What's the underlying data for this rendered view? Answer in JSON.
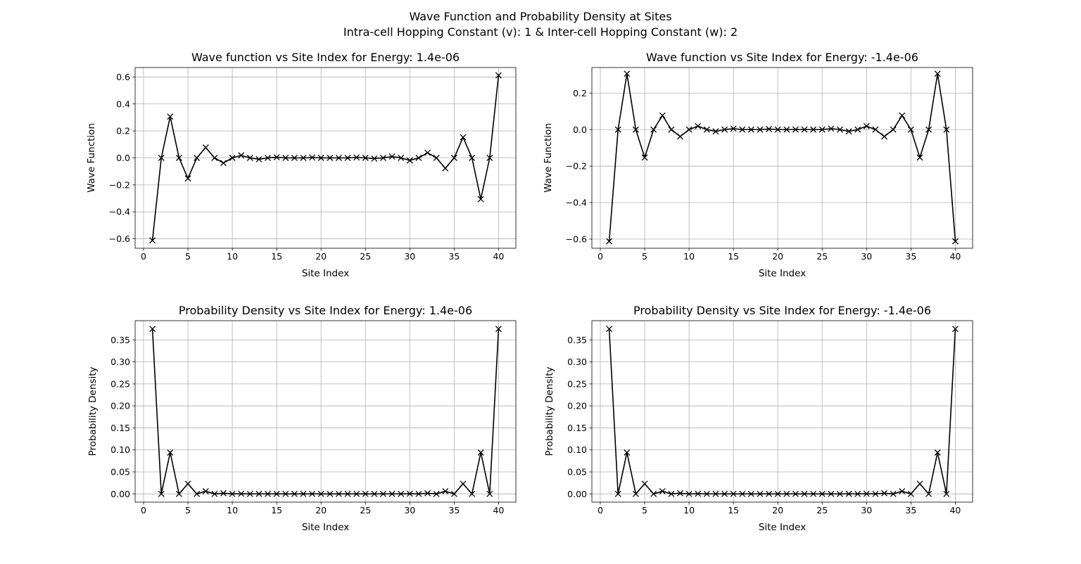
{
  "figure": {
    "suptitle_line1": "Wave Function and Probability Density at Sites",
    "suptitle_line2": "Intra-cell Hopping Constant (v): 1 & Inter-cell Hopping Constant (w): 2"
  },
  "style": {
    "line_color": "#000000",
    "grid_color": "#b0b0b0",
    "marker": "x"
  },
  "chart_data": [
    {
      "type": "line",
      "title": "Wave function vs Site Index for Energy: 1.4e-06",
      "xlabel": "Site Index",
      "ylabel": "Wave Function",
      "xlim": [
        -0.95,
        41.95
      ],
      "ylim": [
        -0.67,
        0.67
      ],
      "xticks": [
        0,
        5,
        10,
        15,
        20,
        25,
        30,
        35,
        40
      ],
      "yticks": [
        -0.6,
        -0.4,
        -0.2,
        0.0,
        0.2,
        0.4,
        0.6
      ],
      "ytick_labels": [
        "−0.6",
        "−0.4",
        "−0.2",
        "0.0",
        "0.2",
        "0.4",
        "0.6"
      ],
      "grid": true,
      "x": [
        1,
        2,
        3,
        4,
        5,
        6,
        7,
        8,
        9,
        10,
        11,
        12,
        13,
        14,
        15,
        16,
        17,
        18,
        19,
        20,
        21,
        22,
        23,
        24,
        25,
        26,
        27,
        28,
        29,
        30,
        31,
        32,
        33,
        34,
        35,
        36,
        37,
        38,
        39,
        40
      ],
      "y": [
        -0.612,
        0.0,
        0.306,
        0.0,
        -0.153,
        0.0,
        0.077,
        0.0,
        -0.038,
        0.0,
        0.019,
        0.0,
        -0.01,
        0.0,
        0.005,
        0.0,
        0.0,
        0.0,
        0.003,
        0.0,
        0.0,
        0.0,
        0.0,
        0.003,
        0.0,
        -0.005,
        0.0,
        0.01,
        0.0,
        -0.019,
        0.0,
        0.038,
        0.0,
        -0.077,
        0.0,
        0.153,
        0.0,
        -0.306,
        0.0,
        0.612
      ]
    },
    {
      "type": "line",
      "title": "Wave function vs Site Index for Energy: -1.4e-06",
      "xlabel": "Site Index",
      "ylabel": "Wave Function",
      "xlim": [
        -0.95,
        41.95
      ],
      "ylim": [
        -0.65,
        0.34
      ],
      "xticks": [
        0,
        5,
        10,
        15,
        20,
        25,
        30,
        35,
        40
      ],
      "yticks": [
        -0.6,
        -0.4,
        -0.2,
        0.0,
        0.2
      ],
      "ytick_labels": [
        "−0.6",
        "−0.4",
        "−0.2",
        "0.0",
        "0.2"
      ],
      "grid": true,
      "x": [
        1,
        2,
        3,
        4,
        5,
        6,
        7,
        8,
        9,
        10,
        11,
        12,
        13,
        14,
        15,
        16,
        17,
        18,
        19,
        20,
        21,
        22,
        23,
        24,
        25,
        26,
        27,
        28,
        29,
        30,
        31,
        32,
        33,
        34,
        35,
        36,
        37,
        38,
        39,
        40
      ],
      "y": [
        -0.612,
        0.0,
        0.306,
        0.0,
        -0.153,
        0.0,
        0.077,
        0.0,
        -0.038,
        0.0,
        0.019,
        0.0,
        -0.01,
        0.0,
        0.005,
        0.0,
        0.0,
        0.0,
        0.003,
        0.0,
        0.0,
        0.0,
        0.0,
        0.0,
        0.0,
        0.005,
        0.0,
        -0.01,
        0.0,
        0.019,
        0.0,
        -0.038,
        0.0,
        0.077,
        0.0,
        -0.153,
        0.0,
        0.306,
        0.0,
        -0.612
      ]
    },
    {
      "type": "line",
      "title": "Probability Density vs Site Index for Energy: 1.4e-06",
      "xlabel": "Site Index",
      "ylabel": "Probability Density",
      "xlim": [
        -0.95,
        41.95
      ],
      "ylim": [
        -0.0187,
        0.3937
      ],
      "xticks": [
        0,
        5,
        10,
        15,
        20,
        25,
        30,
        35,
        40
      ],
      "yticks": [
        0.0,
        0.05,
        0.1,
        0.15,
        0.2,
        0.25,
        0.3,
        0.35
      ],
      "ytick_labels": [
        "0.00",
        "0.05",
        "0.10",
        "0.15",
        "0.20",
        "0.25",
        "0.30",
        "0.35"
      ],
      "grid": true,
      "x": [
        1,
        2,
        3,
        4,
        5,
        6,
        7,
        8,
        9,
        10,
        11,
        12,
        13,
        14,
        15,
        16,
        17,
        18,
        19,
        20,
        21,
        22,
        23,
        24,
        25,
        26,
        27,
        28,
        29,
        30,
        31,
        32,
        33,
        34,
        35,
        36,
        37,
        38,
        39,
        40
      ],
      "y": [
        0.375,
        0.0,
        0.094,
        0.0,
        0.023,
        0.0,
        0.006,
        0.0,
        0.0015,
        0.0,
        0.0004,
        0.0,
        0.0001,
        0.0,
        0.0,
        0.0,
        0.0,
        0.0,
        0.0,
        0.0,
        0.0,
        0.0,
        0.0,
        0.0,
        0.0,
        0.0,
        0.0,
        0.0001,
        0.0,
        0.0004,
        0.0,
        0.0015,
        0.0,
        0.006,
        0.0,
        0.023,
        0.0,
        0.094,
        0.0,
        0.375
      ]
    },
    {
      "type": "line",
      "title": "Probability Density vs Site Index for Energy: -1.4e-06",
      "xlabel": "Site Index",
      "ylabel": "Probability Density",
      "xlim": [
        -0.95,
        41.95
      ],
      "ylim": [
        -0.0187,
        0.3937
      ],
      "xticks": [
        0,
        5,
        10,
        15,
        20,
        25,
        30,
        35,
        40
      ],
      "yticks": [
        0.0,
        0.05,
        0.1,
        0.15,
        0.2,
        0.25,
        0.3,
        0.35
      ],
      "ytick_labels": [
        "0.00",
        "0.05",
        "0.10",
        "0.15",
        "0.20",
        "0.25",
        "0.30",
        "0.35"
      ],
      "grid": true,
      "x": [
        1,
        2,
        3,
        4,
        5,
        6,
        7,
        8,
        9,
        10,
        11,
        12,
        13,
        14,
        15,
        16,
        17,
        18,
        19,
        20,
        21,
        22,
        23,
        24,
        25,
        26,
        27,
        28,
        29,
        30,
        31,
        32,
        33,
        34,
        35,
        36,
        37,
        38,
        39,
        40
      ],
      "y": [
        0.375,
        0.0,
        0.094,
        0.0,
        0.023,
        0.0,
        0.006,
        0.0,
        0.0015,
        0.0,
        0.0004,
        0.0,
        0.0001,
        0.0,
        0.0,
        0.0,
        0.0,
        0.0,
        0.0,
        0.0,
        0.0,
        0.0,
        0.0,
        0.0,
        0.0,
        0.0,
        0.0,
        0.0001,
        0.0,
        0.0004,
        0.0,
        0.0015,
        0.0,
        0.006,
        0.0,
        0.023,
        0.0,
        0.094,
        0.0,
        0.375
      ]
    }
  ]
}
